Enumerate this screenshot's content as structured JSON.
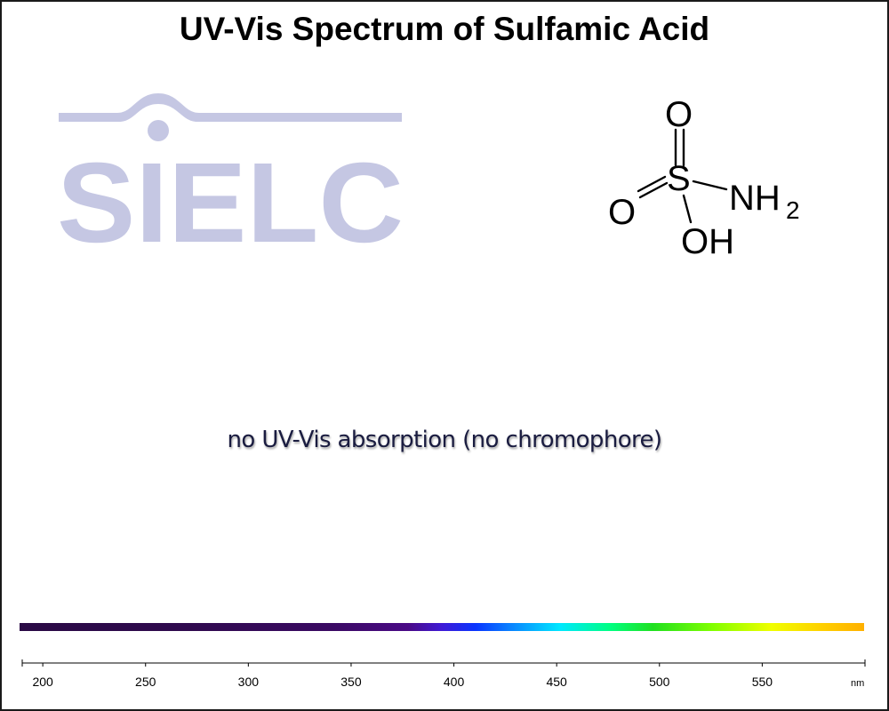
{
  "chart_data": {
    "type": "line",
    "title": "UV-Vis Spectrum of Sulfamic Acid",
    "annotation": "no UV-Vis absorption (no chromophore)",
    "xlabel": "",
    "ylabel": "",
    "x_unit": "nm",
    "xlim": [
      190,
      600
    ],
    "x_ticks": [
      200,
      250,
      300,
      350,
      400,
      450,
      500,
      550
    ],
    "series": [],
    "grid": false
  },
  "logo": {
    "text": "SIELC",
    "color": "#c5c7e3"
  },
  "molecule": {
    "atoms": [
      "O",
      "S",
      "O",
      "NH",
      "2",
      "OH"
    ]
  },
  "colors": {
    "frame": "#1a1a1a",
    "logo": "#c5c7e3",
    "annotation": "#1a1c40"
  }
}
